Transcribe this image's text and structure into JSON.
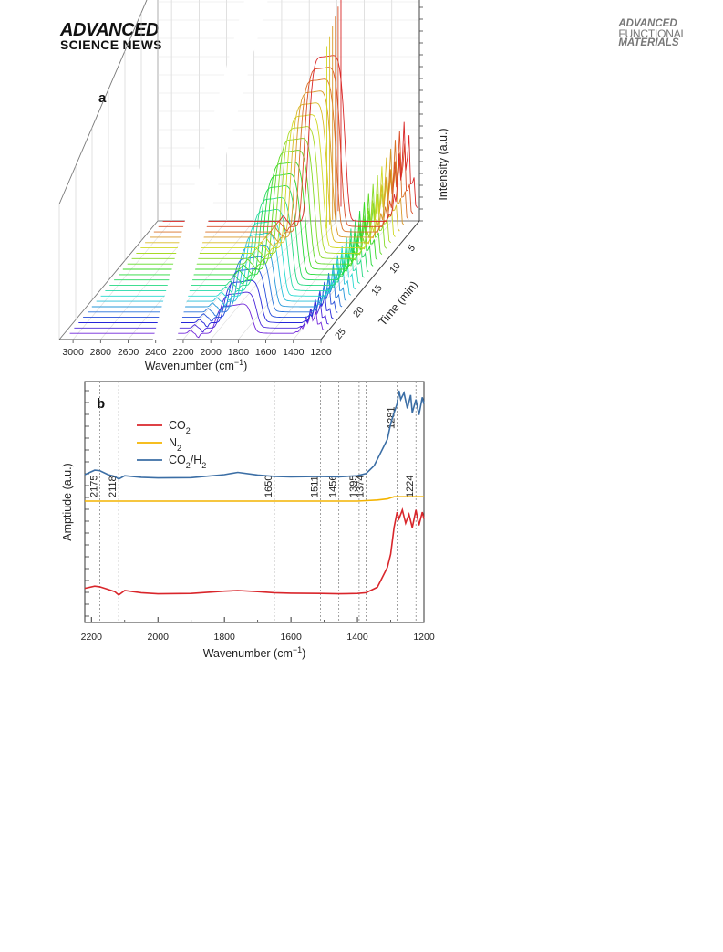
{
  "header": {
    "left_logo": "ADVANCED",
    "left_sub": "SCIENCE NEWS",
    "right_l1": "ADVANCED",
    "right_l2": "FUNCTIONAL",
    "right_l3": "MATERIALS"
  },
  "chart_data": [
    {
      "type": "line",
      "panel": "a",
      "title": "",
      "xlabel": "Wavenumber (cm⁻¹)",
      "ylabel": "Intensity (a.u.)",
      "zlabel": "Time (min)",
      "x_ticks": [
        "3000",
        "2800",
        "2600",
        "2400",
        "2200",
        "2000",
        "1800",
        "1600",
        "1400",
        "1200"
      ],
      "time_ticks": [
        "5",
        "10",
        "15",
        "20",
        "25"
      ],
      "xlim": [
        3100,
        1200
      ],
      "timelim": [
        0,
        27
      ],
      "series_count": 22,
      "features_wavenumber": [
        2175,
        2118,
        1650,
        1511,
        1456,
        1395,
        1374,
        1281,
        1224
      ]
    },
    {
      "type": "line",
      "panel": "b",
      "title": "",
      "xlabel": "Wavenumber (cm⁻¹)",
      "ylabel": "Amptiude (a.u.)",
      "x_ticks": [
        "2200",
        "2000",
        "1800",
        "1600",
        "1400",
        "1200"
      ],
      "xlim": [
        2220,
        1200
      ],
      "grid": false,
      "legend_position": "top-left",
      "peak_labels": [
        "2175",
        "2118",
        "1650",
        "1511",
        "1456",
        "1395",
        "1374",
        "1281",
        "1224"
      ],
      "peak_positions": [
        2175,
        2118,
        1650,
        1511,
        1456,
        1395,
        1374,
        1281,
        1224
      ],
      "series": [
        {
          "name": "CO2",
          "color": "#d9262b",
          "x": [
            2220,
            2190,
            2175,
            2150,
            2130,
            2118,
            2100,
            2050,
            2000,
            1900,
            1800,
            1760,
            1700,
            1650,
            1600,
            1511,
            1456,
            1400,
            1374,
            1340,
            1310,
            1300,
            1290,
            1281,
            1275,
            1265,
            1255,
            1245,
            1235,
            1224,
            1215,
            1205,
            1200
          ],
          "values": [
            0.105,
            0.115,
            0.112,
            0.1,
            0.09,
            0.075,
            0.095,
            0.085,
            0.08,
            0.082,
            0.092,
            0.095,
            0.09,
            0.085,
            0.083,
            0.082,
            0.08,
            0.082,
            0.085,
            0.11,
            0.2,
            0.26,
            0.38,
            0.45,
            0.42,
            0.46,
            0.4,
            0.44,
            0.38,
            0.46,
            0.39,
            0.45,
            0.42
          ]
        },
        {
          "name": "N2",
          "color": "#f4b400",
          "x": [
            2220,
            2000,
            1800,
            1600,
            1400,
            1374,
            1340,
            1310,
            1300,
            1290,
            1281,
            1260,
            1240,
            1224,
            1200
          ],
          "values": [
            0.5,
            0.5,
            0.5,
            0.5,
            0.5,
            0.502,
            0.505,
            0.51,
            0.515,
            0.52,
            0.52,
            0.52,
            0.52,
            0.52,
            0.52
          ]
        },
        {
          "name": "CO2/H2",
          "color": "#3b6ea5",
          "x": [
            2220,
            2190,
            2175,
            2150,
            2130,
            2118,
            2100,
            2050,
            2000,
            1900,
            1800,
            1760,
            1700,
            1650,
            1600,
            1511,
            1456,
            1400,
            1374,
            1350,
            1330,
            1310,
            1300,
            1290,
            1281,
            1275,
            1270,
            1260,
            1250,
            1240,
            1235,
            1224,
            1215,
            1205,
            1200
          ],
          "values": [
            0.62,
            0.64,
            0.638,
            0.62,
            0.612,
            0.6,
            0.615,
            0.608,
            0.605,
            0.606,
            0.62,
            0.63,
            0.618,
            0.612,
            0.61,
            0.612,
            0.61,
            0.615,
            0.625,
            0.66,
            0.72,
            0.78,
            0.85,
            0.9,
            0.94,
            1.0,
            0.96,
            0.99,
            0.92,
            0.98,
            0.9,
            0.96,
            0.89,
            0.97,
            0.94
          ]
        }
      ]
    }
  ]
}
